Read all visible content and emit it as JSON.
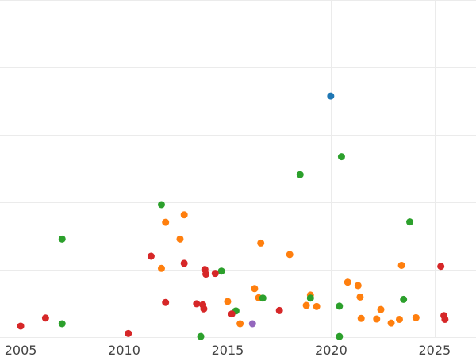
{
  "chart_data": {
    "type": "scatter",
    "title": "",
    "xlabel": "",
    "ylabel": "",
    "xlim": [
      2004.0,
      2027.0
    ],
    "ylim": [
      0.0,
      1.0
    ],
    "x_ticks": [
      2005,
      2010,
      2015,
      2020,
      2025
    ],
    "x_tick_labels": [
      "2005",
      "2010",
      "2015",
      "2020",
      "2025"
    ],
    "y_ticks": [
      0.0,
      0.2,
      0.4,
      0.6,
      0.8,
      1.0
    ],
    "y_tick_labels": [
      "",
      "",
      "",
      "",
      "",
      ""
    ],
    "grid": true,
    "legend": "none",
    "series": [
      {
        "color": "#1f77b4",
        "x": [
          2019.98
        ],
        "y": [
          0.715
        ]
      },
      {
        "color": "#ff7f0e",
        "x": [
          2011.8,
          2012.0,
          2012.7,
          2012.9,
          2015.0,
          2015.6,
          2016.3,
          2016.5,
          2016.6,
          2018.0,
          2018.8,
          2019.0,
          2019.3,
          2020.8,
          2021.3,
          2021.4,
          2021.45,
          2022.2,
          2022.4,
          2022.9,
          2023.3,
          2023.4,
          2024.1
        ],
        "y": [
          0.204,
          0.341,
          0.291,
          0.363,
          0.106,
          0.04,
          0.144,
          0.117,
          0.279,
          0.245,
          0.094,
          0.125,
          0.091,
          0.163,
          0.153,
          0.119,
          0.056,
          0.054,
          0.082,
          0.042,
          0.053,
          0.213,
          0.058
        ]
      },
      {
        "color": "#2ca02c",
        "x": [
          2007.0,
          2007.0,
          2011.8,
          2013.7,
          2014.7,
          2015.4,
          2016.7,
          2018.5,
          2019.0,
          2020.4,
          2020.5,
          2020.4,
          2023.5,
          2023.8
        ],
        "y": [
          0.291,
          0.04,
          0.393,
          0.002,
          0.196,
          0.078,
          0.116,
          0.482,
          0.116,
          0.092,
          0.535,
          0.002,
          0.112,
          0.342
        ]
      },
      {
        "color": "#d62728",
        "x": [
          2005.0,
          2006.2,
          2010.2,
          2011.3,
          2012.0,
          2012.9,
          2013.5,
          2013.8,
          2013.85,
          2013.9,
          2013.95,
          2014.4,
          2015.2,
          2017.5,
          2025.3,
          2025.45,
          2025.5
        ],
        "y": [
          0.033,
          0.057,
          0.011,
          0.24,
          0.103,
          0.219,
          0.099,
          0.096,
          0.084,
          0.201,
          0.187,
          0.189,
          0.069,
          0.079,
          0.21,
          0.064,
          0.053
        ]
      },
      {
        "color": "#9467bd",
        "x": [
          2016.2
        ],
        "y": [
          0.04
        ]
      }
    ]
  }
}
